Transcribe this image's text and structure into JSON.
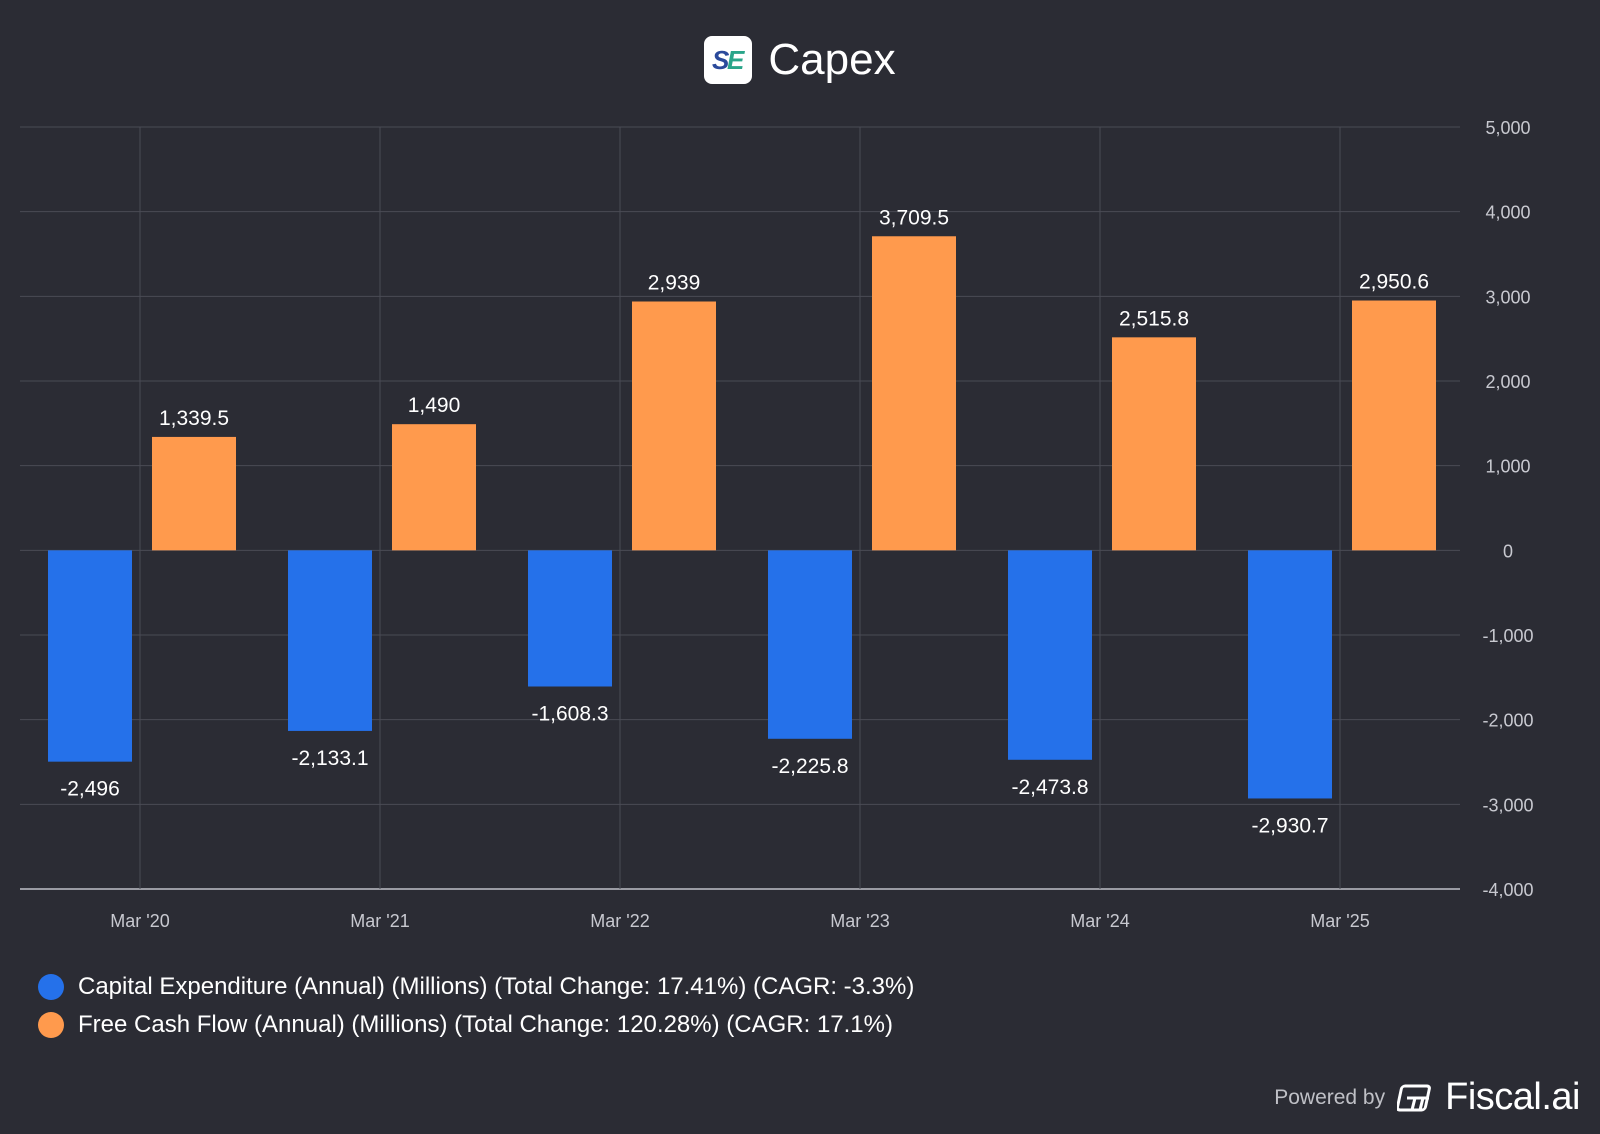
{
  "header": {
    "title": "Capex",
    "logo_text": "SE"
  },
  "colors": {
    "background": "#2b2c34",
    "grid": "#4a4b55",
    "capex": "#2571ea",
    "fcf": "#ff9a4d",
    "axis_text": "#c8c9d0"
  },
  "chart_data": {
    "type": "bar",
    "title": "Capex",
    "categories": [
      "Mar '20",
      "Mar '21",
      "Mar '22",
      "Mar '23",
      "Mar '24",
      "Mar '25"
    ],
    "series": [
      {
        "name": "Capital Expenditure (Annual) (Millions)",
        "values": [
          -2496,
          -2133.1,
          -1608.3,
          -2225.8,
          -2473.8,
          -2930.7
        ],
        "labels": [
          "-2,496",
          "-2,133.1",
          "-1,608.3",
          "-2,225.8",
          "-2,473.8",
          "-2,930.7"
        ]
      },
      {
        "name": "Free Cash Flow (Annual) (Millions)",
        "values": [
          1339.5,
          1490,
          2939,
          3709.5,
          2515.8,
          2950.6
        ],
        "labels": [
          "1,339.5",
          "1,490",
          "2,939",
          "3,709.5",
          "2,515.8",
          "2,950.6"
        ]
      }
    ],
    "yticks": [
      5000,
      4000,
      3000,
      2000,
      1000,
      0,
      -1000,
      -2000,
      -3000,
      -4000
    ],
    "ytick_labels": [
      "5,000",
      "4,000",
      "3,000",
      "2,000",
      "1,000",
      "0",
      "-1,000",
      "-2,000",
      "-3,000",
      "-4,000"
    ],
    "ylim": [
      -4000,
      5000
    ],
    "grid": true,
    "y_axis_side": "right",
    "legend_position": "bottom-left"
  },
  "legend": {
    "items": [
      {
        "label": "Capital Expenditure (Annual) (Millions) (Total Change: 17.41%) (CAGR: -3.3%)",
        "color": "#2571ea"
      },
      {
        "label": "Free Cash Flow (Annual) (Millions) (Total Change: 120.28%) (CAGR: 17.1%)",
        "color": "#ff9a4d"
      }
    ]
  },
  "footer": {
    "powered_by": "Powered by",
    "brand": "Fiscal.ai"
  }
}
